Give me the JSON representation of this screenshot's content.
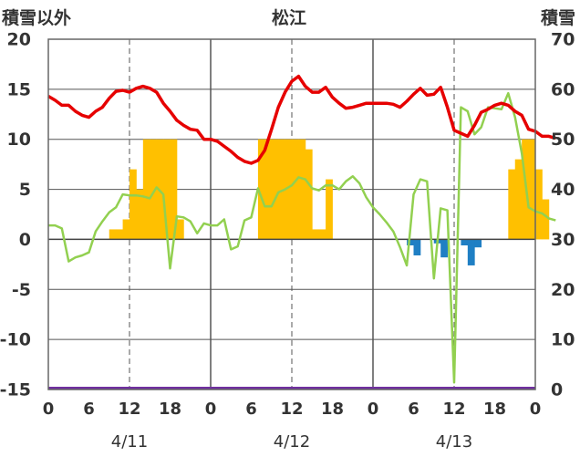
{
  "chart_data": {
    "type": "line",
    "title": "松江",
    "ylabel_left": "積雪以外",
    "ylabel_right": "積雪",
    "ylim_left": [
      -15,
      20
    ],
    "ylim_right": [
      0,
      70
    ],
    "yticks_left": [
      "20",
      "15",
      "10",
      "5",
      "0",
      "-5",
      "-10",
      "-15"
    ],
    "yticks_right": [
      "70",
      "60",
      "50",
      "40",
      "30",
      "20",
      "10",
      "0"
    ],
    "xticks": [
      "0",
      "6",
      "12",
      "18",
      "0",
      "6",
      "12",
      "18",
      "0",
      "6",
      "12",
      "18",
      "0"
    ],
    "dates": [
      "4/11",
      "4/12",
      "4/13"
    ],
    "grid": true,
    "colors": {
      "temperature": "#e60000",
      "green": "#92d050",
      "positive_bars": "#ffc000",
      "negative_bars": "#1f7fc4",
      "baseline": "#7030a0",
      "grid": "#555555"
    },
    "series": {
      "temperature": [
        14.3,
        13.9,
        13.4,
        13.4,
        12.8,
        12.4,
        12.2,
        12.8,
        13.2,
        14.1,
        14.8,
        14.9,
        14.7,
        15.1,
        15.3,
        15.1,
        14.7,
        13.6,
        12.8,
        11.9,
        11.4,
        11.0,
        10.9,
        10.0,
        10.0,
        9.8,
        9.3,
        8.8,
        8.2,
        7.8,
        7.6,
        7.9,
        8.9,
        11.0,
        13.2,
        14.7,
        15.8,
        16.3,
        15.3,
        14.7,
        14.7,
        15.2,
        14.2,
        13.6,
        13.1,
        13.2,
        13.4,
        13.6,
        13.6,
        13.6,
        13.6,
        13.5,
        13.2,
        13.8,
        14.5,
        15.1,
        14.4,
        14.5,
        15.2,
        13.2,
        10.9,
        10.6,
        10.3,
        11.4,
        12.7,
        13.0,
        13.4,
        13.6,
        13.4,
        12.8,
        12.4,
        11.0,
        10.8,
        10.3,
        10.3,
        10.1
      ],
      "green": [
        1.4,
        1.4,
        1.1,
        -2.2,
        -1.8,
        -1.6,
        -1.3,
        0.8,
        1.8,
        2.7,
        3.2,
        4.5,
        4.4,
        4.4,
        4.3,
        4.1,
        5.2,
        4.5,
        -2.9,
        2.3,
        2.2,
        1.8,
        0.6,
        1.6,
        1.4,
        1.4,
        2.0,
        -1.0,
        -0.7,
        1.9,
        2.2,
        5.1,
        3.3,
        3.3,
        4.7,
        5.0,
        5.4,
        6.2,
        6.0,
        5.1,
        4.9,
        5.4,
        5.4,
        5.0,
        5.8,
        6.3,
        5.6,
        4.2,
        3.2,
        2.5,
        1.7,
        0.8,
        -0.8,
        -2.6,
        4.5,
        6.0,
        5.8,
        -3.9,
        3.1,
        2.9,
        -14.3,
        13.2,
        12.8,
        10.5,
        11.2,
        13.2,
        13.1,
        13.0,
        14.6,
        12.2,
        8.6,
        3.2,
        2.8,
        2.6,
        2.1,
        1.9
      ],
      "positive_bars": [
        0,
        0,
        0,
        0,
        0,
        0,
        0,
        0,
        0,
        1,
        1,
        2,
        7,
        5,
        10,
        10,
        10,
        10,
        10,
        2,
        0,
        0,
        0,
        0,
        0,
        0,
        0,
        0,
        0,
        0,
        0,
        10,
        10,
        10,
        10,
        10,
        10,
        10,
        9,
        1,
        1,
        6,
        0,
        0,
        0,
        0,
        0,
        0,
        0,
        0,
        0,
        0,
        0,
        0,
        0,
        0,
        0,
        0,
        0,
        0,
        0,
        0,
        0,
        0,
        0,
        0,
        0,
        0,
        7,
        8,
        10,
        10,
        7,
        4,
        0,
        0
      ],
      "negative_bars": [
        0,
        0,
        0,
        0,
        0,
        0,
        0,
        0,
        0,
        0,
        0,
        0,
        0,
        0,
        0,
        0,
        0,
        0,
        0,
        0,
        0,
        0,
        0,
        0,
        0,
        0,
        0,
        0,
        0,
        0,
        0,
        0,
        0,
        0,
        0,
        0,
        0,
        0,
        0,
        0,
        0,
        0,
        0,
        0,
        0,
        0,
        0,
        0,
        0,
        0,
        0,
        0,
        0,
        -0.6,
        -1.6,
        0,
        0,
        -0.4,
        -1.8,
        0,
        0,
        -0.6,
        -2.6,
        -0.8,
        0,
        0,
        0,
        0,
        0,
        0,
        0,
        0,
        0,
        0,
        0,
        0
      ]
    }
  }
}
